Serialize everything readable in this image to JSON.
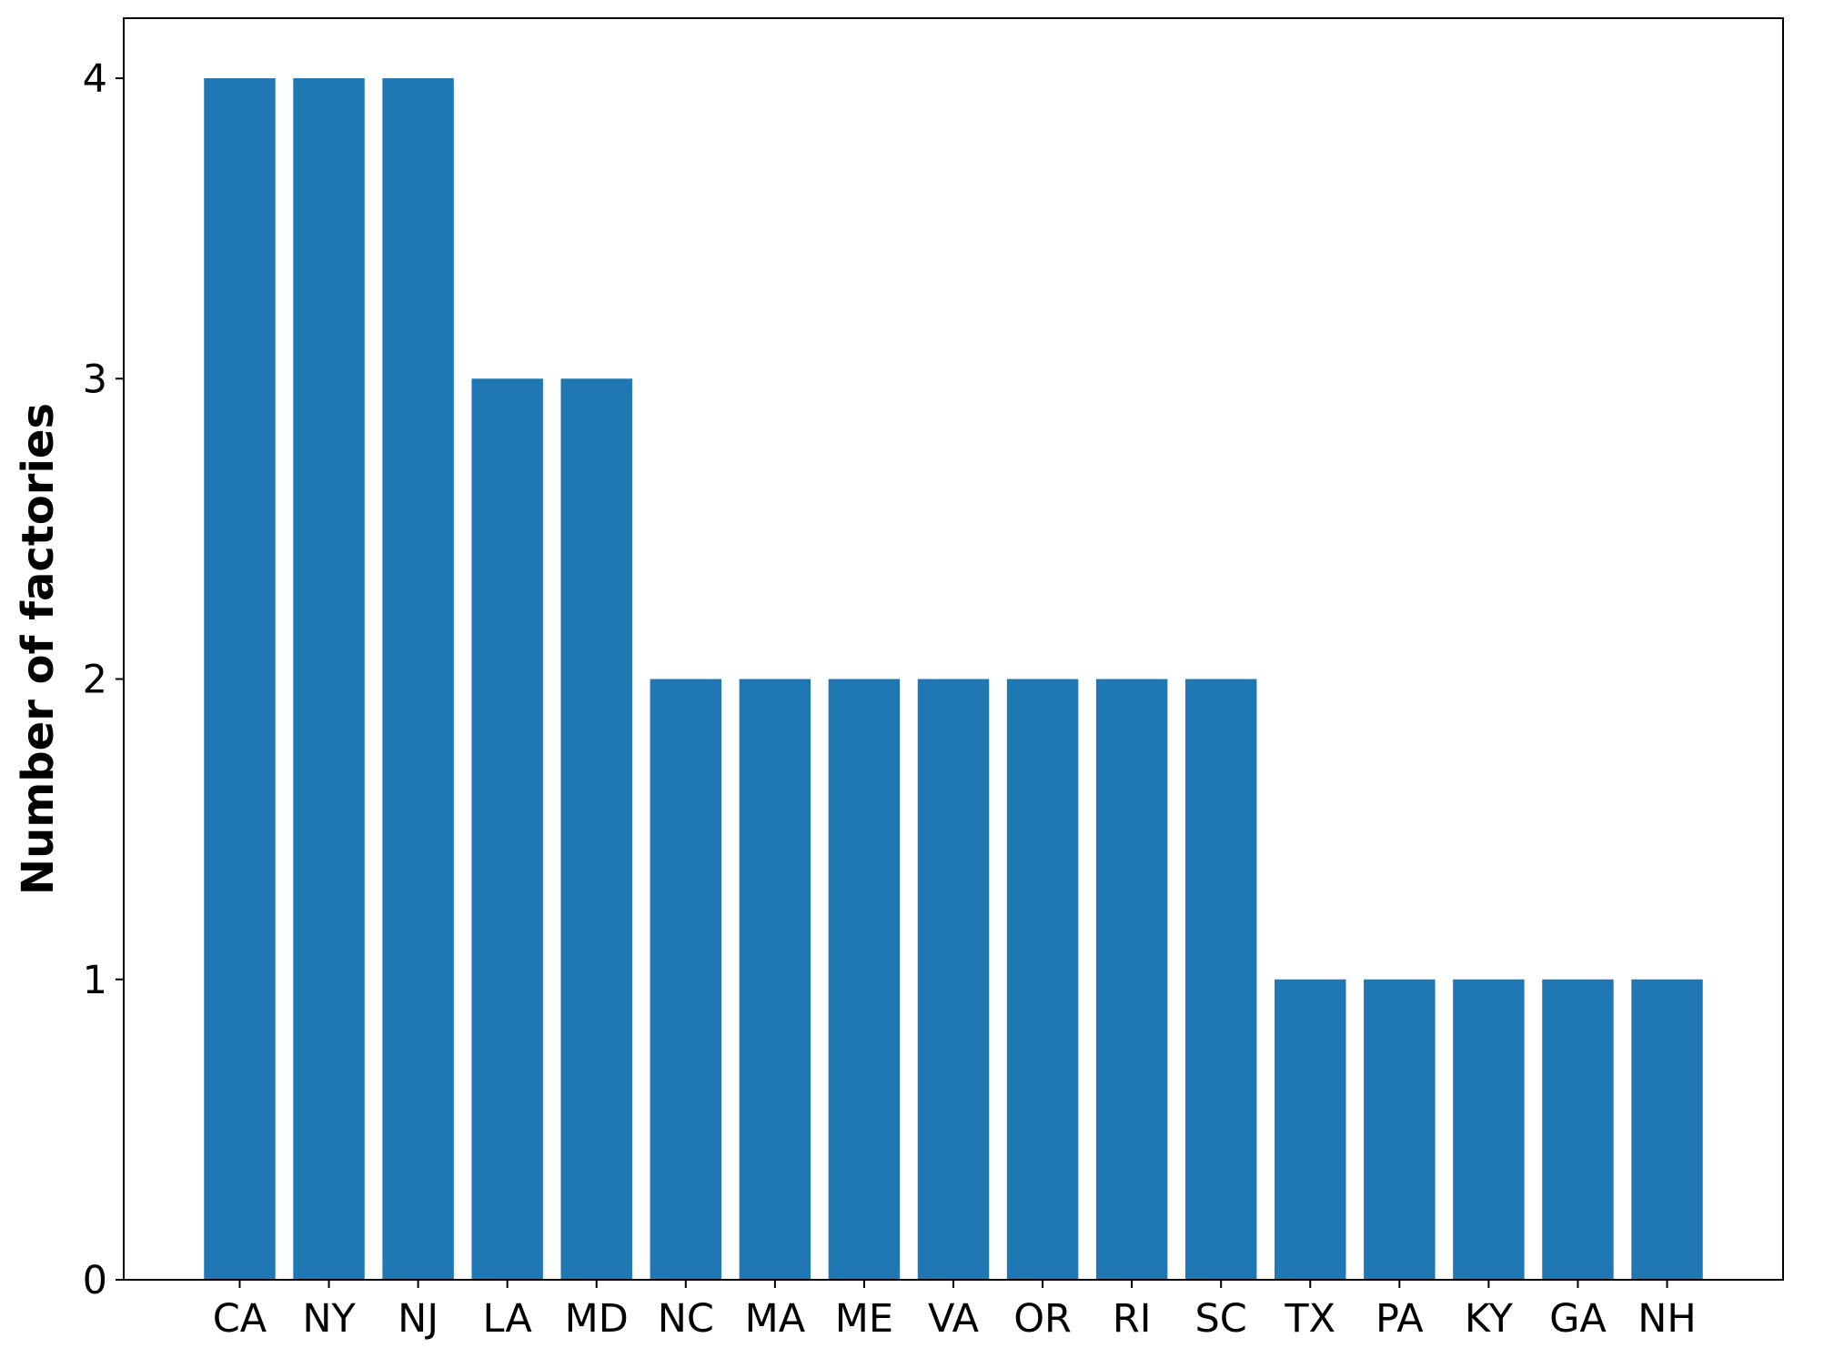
{
  "chart_data": {
    "type": "bar",
    "title": "",
    "xlabel": "",
    "ylabel": "Number of factories",
    "categories": [
      "CA",
      "NY",
      "NJ",
      "LA",
      "MD",
      "NC",
      "MA",
      "ME",
      "VA",
      "OR",
      "RI",
      "SC",
      "TX",
      "PA",
      "KY",
      "GA",
      "NH"
    ],
    "values": [
      4,
      4,
      4,
      3,
      3,
      2,
      2,
      2,
      2,
      2,
      2,
      2,
      1,
      1,
      1,
      1,
      1
    ],
    "ylim": [
      0,
      4.2
    ],
    "yticks": [
      "0",
      "1",
      "2",
      "3",
      "4"
    ],
    "bar_color": "#1f77b4",
    "grid": false,
    "legend": "none"
  }
}
